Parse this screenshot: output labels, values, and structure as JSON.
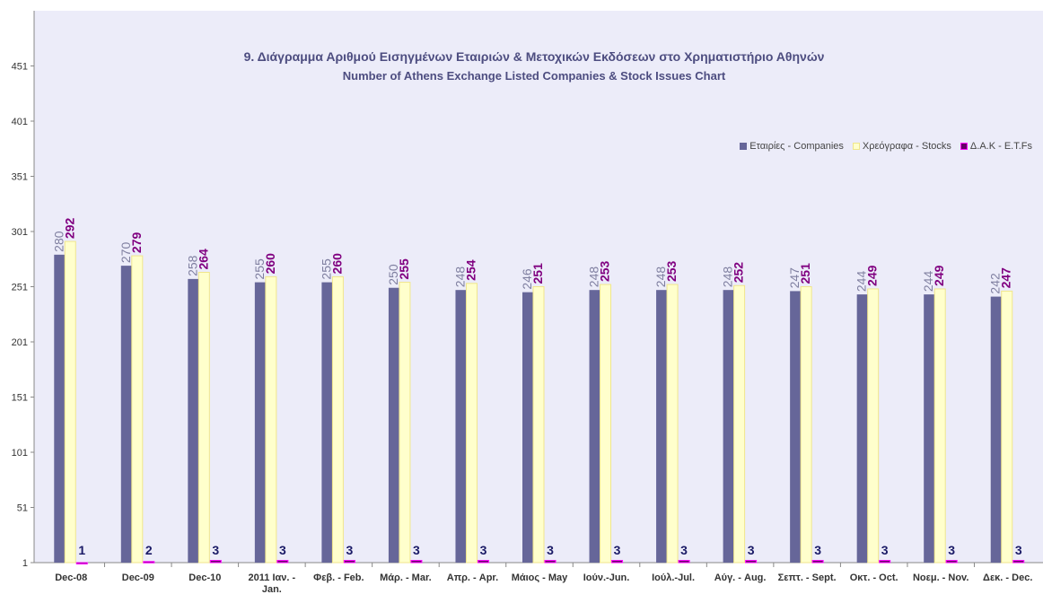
{
  "chart_data": {
    "type": "bar",
    "title": "9. Διάγραμμα Αριθμού Εισηγμένων Εταιριών & Μετοχικών Εκδόσεων στο Χρηματιστήριο Αθηνών",
    "subtitle": "Number of Athens Exchange Listed Companies & Stock Issues Chart",
    "categories": [
      "Dec-08",
      "Dec-09",
      "Dec-10",
      "2011 Ιαν. - Jan.",
      "Φεβ. - Feb.",
      "Μάρ. - Mar.",
      "Απρ. - Apr.",
      "Μάιος - May",
      "Ιούν.-Jun.",
      "Ιούλ.-Jul.",
      "Αύγ. - Aug.",
      "Σεπτ. - Sept.",
      "Οκτ. - Oct.",
      "Νοεμ. - Nov.",
      "Δεκ. - Dec."
    ],
    "series": [
      {
        "name": "Εταιρίες - Companies",
        "color": "#666699",
        "values": [
          280,
          270,
          258,
          255,
          255,
          250,
          248,
          246,
          248,
          248,
          248,
          247,
          244,
          244,
          242
        ]
      },
      {
        "name": "Χρεόγραφα - Stocks",
        "color": "#ffffcc",
        "values": [
          292,
          279,
          264,
          260,
          260,
          255,
          254,
          251,
          253,
          253,
          252,
          251,
          249,
          249,
          247
        ]
      },
      {
        "name": "Δ.Α.Κ - E.T.Fs",
        "color": "#660066",
        "values": [
          1,
          2,
          3,
          3,
          3,
          3,
          3,
          3,
          3,
          3,
          3,
          3,
          3,
          3,
          3
        ]
      }
    ],
    "ylim": [
      1,
      501
    ],
    "yticks": [
      1,
      51,
      101,
      151,
      201,
      251,
      301,
      351,
      401,
      451
    ],
    "legend": "top-right",
    "grid": false
  }
}
